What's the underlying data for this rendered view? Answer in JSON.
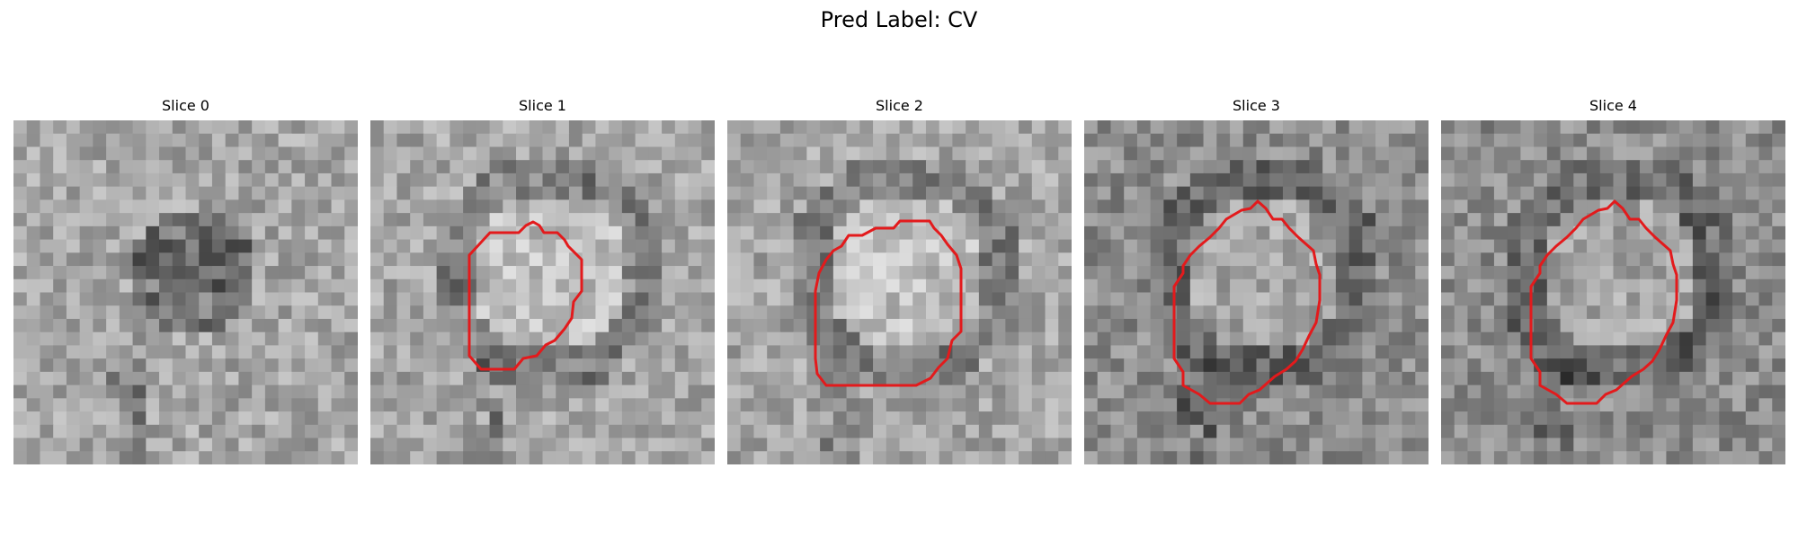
{
  "figure": {
    "title": "Pred Label: CV"
  },
  "panels": [
    {
      "title": "Slice 0",
      "has_contour": false
    },
    {
      "title": "Slice 1",
      "has_contour": true
    },
    {
      "title": "Slice 2",
      "has_contour": true
    },
    {
      "title": "Slice 3",
      "has_contour": true
    },
    {
      "title": "Slice 4",
      "has_contour": true
    }
  ],
  "colors": {
    "contour": "#e31a1c",
    "background": "#ffffff"
  }
}
